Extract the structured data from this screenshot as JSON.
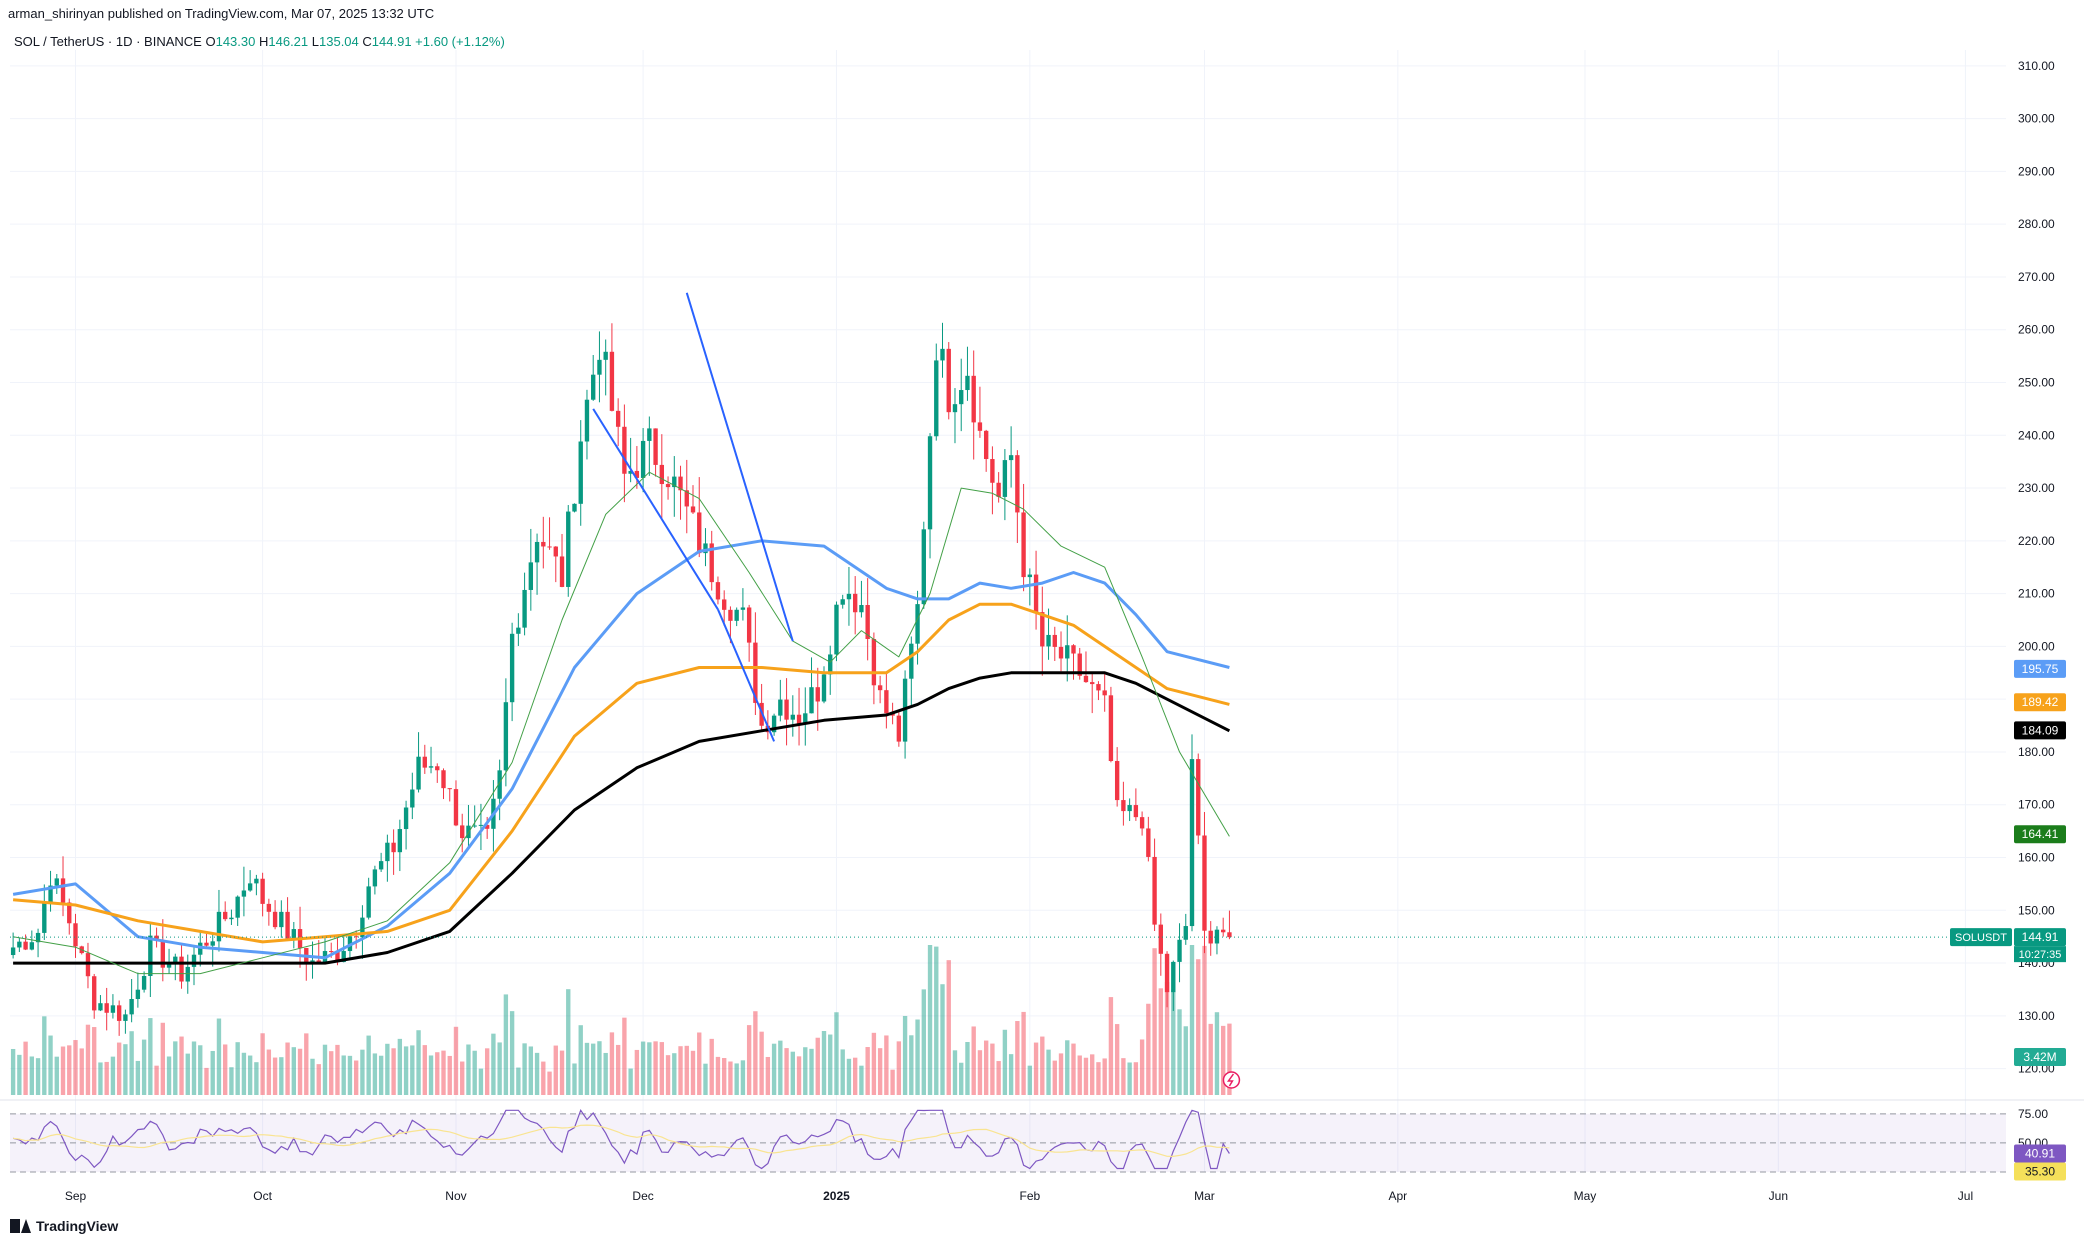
{
  "header": {
    "published": "arman_shirinyan published on TradingView.com, Mar 07, 2025 13:32 UTC"
  },
  "legend": {
    "symbol": "SOL / TetherUS · 1D · BINANCE",
    "o_label": "O",
    "o": "143.30",
    "h_label": "H",
    "h": "146.21",
    "l_label": "L",
    "l": "135.04",
    "c_label": "C",
    "c": "144.91",
    "change": "+1.60 (+1.12%)"
  },
  "footer": {
    "brand": "TradingView"
  },
  "colors": {
    "up": "#089981",
    "down": "#f23645",
    "ma_blue": "#5b9cf6",
    "ma_orange": "#f7a21b",
    "ma_black": "#000000",
    "ma_green": "#43a047",
    "trend": "#2962ff",
    "rsi": "#7e57c2",
    "rsi_ma": "#f9e491"
  },
  "chart_data": {
    "type": "candlestick",
    "symbol": "SOLUSDT",
    "y_axis": {
      "ticks": [
        "310.00",
        "300.00",
        "290.00",
        "280.00",
        "270.00",
        "260.00",
        "250.00",
        "240.00",
        "230.00",
        "220.00",
        "210.00",
        "200.00",
        "190.00",
        "180.00",
        "170.00",
        "160.00",
        "150.00",
        "140.00",
        "130.00",
        "120.00"
      ],
      "range": [
        115,
        313
      ]
    },
    "x_axis": {
      "labels": [
        {
          "label": "Sep",
          "bar": 10
        },
        {
          "label": "Oct",
          "bar": 40
        },
        {
          "label": "Nov",
          "bar": 71
        },
        {
          "label": "Dec",
          "bar": 101
        },
        {
          "label": "2025",
          "bar": 132
        },
        {
          "label": "Feb",
          "bar": 163
        },
        {
          "label": "Mar",
          "bar": 191
        },
        {
          "label": "Apr",
          "bar": 222
        },
        {
          "label": "May",
          "bar": 252
        },
        {
          "label": "Jun",
          "bar": 283
        },
        {
          "label": "Jul",
          "bar": 313
        }
      ],
      "total_bars": 320,
      "first_date": "2024-08-22"
    },
    "anchors": [
      [
        0,
        143
      ],
      [
        4,
        146
      ],
      [
        6,
        157
      ],
      [
        9,
        148
      ],
      [
        13,
        133
      ],
      [
        18,
        130
      ],
      [
        22,
        143
      ],
      [
        27,
        138
      ],
      [
        30,
        143
      ],
      [
        35,
        150
      ],
      [
        38,
        157
      ],
      [
        40,
        152
      ],
      [
        44,
        146
      ],
      [
        48,
        140
      ],
      [
        52,
        142
      ],
      [
        55,
        147
      ],
      [
        57,
        155
      ],
      [
        61,
        162
      ],
      [
        65,
        177
      ],
      [
        68,
        178
      ],
      [
        72,
        165
      ],
      [
        76,
        163
      ],
      [
        78,
        175
      ],
      [
        80,
        202
      ],
      [
        84,
        222
      ],
      [
        88,
        213
      ],
      [
        91,
        240
      ],
      [
        94,
        258
      ],
      [
        96,
        245
      ],
      [
        98,
        232
      ],
      [
        102,
        238
      ],
      [
        105,
        233
      ],
      [
        107,
        228
      ],
      [
        111,
        217
      ],
      [
        114,
        210
      ],
      [
        117,
        205
      ],
      [
        120,
        185
      ],
      [
        123,
        190
      ],
      [
        126,
        187
      ],
      [
        129,
        192
      ],
      [
        133,
        212
      ],
      [
        136,
        208
      ],
      [
        139,
        190
      ],
      [
        142,
        183
      ],
      [
        145,
        207
      ],
      [
        148,
        258
      ],
      [
        150,
        248
      ],
      [
        153,
        253
      ],
      [
        155,
        240
      ],
      [
        158,
        228
      ],
      [
        160,
        236
      ],
      [
        162,
        216
      ],
      [
        165,
        200
      ],
      [
        168,
        198
      ],
      [
        171,
        195
      ],
      [
        175,
        188
      ],
      [
        177,
        168
      ],
      [
        181,
        168
      ],
      [
        183,
        147
      ],
      [
        185,
        135
      ],
      [
        188,
        147
      ],
      [
        189,
        179
      ],
      [
        191,
        145
      ],
      [
        193,
        147
      ],
      [
        195,
        145
      ]
    ],
    "moving_averages": [
      {
        "name": "MA blue",
        "last": "195.75",
        "points": [
          [
            0,
            153
          ],
          [
            10,
            155
          ],
          [
            20,
            145
          ],
          [
            30,
            143
          ],
          [
            40,
            142
          ],
          [
            50,
            141
          ],
          [
            60,
            147
          ],
          [
            70,
            157
          ],
          [
            80,
            173
          ],
          [
            90,
            196
          ],
          [
            100,
            210
          ],
          [
            110,
            218
          ],
          [
            120,
            220
          ],
          [
            130,
            219
          ],
          [
            140,
            211
          ],
          [
            145,
            209
          ],
          [
            150,
            209
          ],
          [
            155,
            212
          ],
          [
            160,
            211
          ],
          [
            165,
            212
          ],
          [
            170,
            214
          ],
          [
            175,
            212
          ],
          [
            180,
            206
          ],
          [
            185,
            199
          ],
          [
            195,
            196
          ]
        ]
      },
      {
        "name": "MA orange",
        "last": "189.42",
        "points": [
          [
            0,
            152
          ],
          [
            10,
            151
          ],
          [
            20,
            148
          ],
          [
            30,
            146
          ],
          [
            40,
            144
          ],
          [
            50,
            145
          ],
          [
            60,
            146
          ],
          [
            70,
            150
          ],
          [
            80,
            165
          ],
          [
            90,
            183
          ],
          [
            100,
            193
          ],
          [
            110,
            196
          ],
          [
            120,
            196
          ],
          [
            130,
            195
          ],
          [
            140,
            195
          ],
          [
            145,
            199
          ],
          [
            150,
            205
          ],
          [
            155,
            208
          ],
          [
            160,
            208
          ],
          [
            165,
            206
          ],
          [
            170,
            204
          ],
          [
            175,
            200
          ],
          [
            180,
            196
          ],
          [
            185,
            192
          ],
          [
            195,
            189
          ]
        ]
      },
      {
        "name": "MA black",
        "last": "184.09",
        "points": [
          [
            0,
            140
          ],
          [
            10,
            140
          ],
          [
            20,
            140
          ],
          [
            30,
            140
          ],
          [
            40,
            140
          ],
          [
            50,
            140
          ],
          [
            60,
            142
          ],
          [
            70,
            146
          ],
          [
            80,
            157
          ],
          [
            90,
            169
          ],
          [
            100,
            177
          ],
          [
            110,
            182
          ],
          [
            120,
            184
          ],
          [
            130,
            186
          ],
          [
            140,
            187
          ],
          [
            145,
            189
          ],
          [
            150,
            192
          ],
          [
            155,
            194
          ],
          [
            160,
            195
          ],
          [
            165,
            195
          ],
          [
            170,
            195
          ],
          [
            175,
            195
          ],
          [
            180,
            193
          ],
          [
            185,
            190
          ],
          [
            195,
            184
          ]
        ]
      },
      {
        "name": "MA green",
        "last": "164.41",
        "points": [
          [
            0,
            145
          ],
          [
            10,
            143
          ],
          [
            20,
            138
          ],
          [
            30,
            138
          ],
          [
            40,
            141
          ],
          [
            50,
            144
          ],
          [
            60,
            148
          ],
          [
            70,
            159
          ],
          [
            80,
            178
          ],
          [
            88,
            205
          ],
          [
            95,
            225
          ],
          [
            102,
            233
          ],
          [
            110,
            228
          ],
          [
            118,
            214
          ],
          [
            125,
            201
          ],
          [
            131,
            197
          ],
          [
            136,
            203
          ],
          [
            142,
            198
          ],
          [
            147,
            210
          ],
          [
            152,
            230
          ],
          [
            157,
            229
          ],
          [
            162,
            226
          ],
          [
            168,
            219
          ],
          [
            175,
            215
          ],
          [
            181,
            198
          ],
          [
            187,
            180
          ],
          [
            195,
            164
          ]
        ]
      }
    ],
    "trend_lines": [
      {
        "from": [
          108,
          267
        ],
        "to": [
          125,
          201
        ]
      },
      {
        "from": [
          93,
          245
        ],
        "to": [
          113,
          207
        ]
      },
      {
        "from": [
          113,
          207
        ],
        "to": [
          122,
          182
        ]
      }
    ],
    "price_labels": [
      {
        "text": "195.75",
        "value": 195.75,
        "color": "#5b9cf6"
      },
      {
        "text": "189.42",
        "value": 189.42,
        "color": "#f7a21b"
      },
      {
        "text": "184.09",
        "value": 184.09,
        "color": "#000000"
      },
      {
        "text": "164.41",
        "value": 164.41,
        "color": "#1b7d1b"
      },
      {
        "text": "144.91",
        "value": 144.91,
        "color": "#089981",
        "tag": "SOLUSDT",
        "countdown": "10:27:35"
      }
    ],
    "volume_label": "3.42M",
    "rsi": {
      "ticks": [
        "75.00",
        "50.00"
      ],
      "value_label": "40.91",
      "ma_label": "35.30",
      "range": [
        25,
        80
      ]
    }
  }
}
